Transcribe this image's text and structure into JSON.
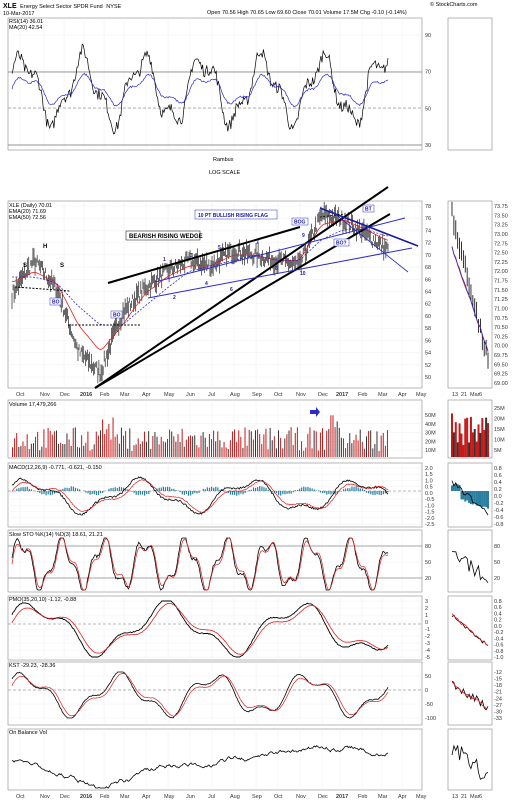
{
  "header": {
    "symbol": "XLE",
    "name": "Energy Select Sector SPDR Fund",
    "exchange": "NYSE",
    "date": "10-Mar-2017",
    "quote": "Open 70.56  High 70.65  Low 69.60  Close 70.01  Volume 17.5M  Chg -0.10 (-0.14%)",
    "watermark": "© StockCharts.com"
  },
  "colors": {
    "price": "#000000",
    "ema20": "#e02020",
    "ema50": "#2a2ad0",
    "volume": "#c81818",
    "macd_hist": "#2a7fa0",
    "line": "#000000",
    "signal": "#e02020",
    "trend": "#000000",
    "flag": "#2a2ad0"
  },
  "texts": {
    "rambus": "Rambus",
    "log_scale": "LOG SCALE",
    "wedge_label": "BEARISH RISING WEDGE",
    "flag_label": "10 PT BULLISH RISING FLAG",
    "bo1": "BO",
    "bo2": "BO",
    "bog": "BOG",
    "bo_flag": "BO?",
    "bt": "BT",
    "h": "H",
    "s1": "S",
    "s2": "S"
  },
  "wave_labels": [
    "1",
    "2",
    "3",
    "4",
    "5",
    "6",
    "7",
    "8",
    "9",
    "10"
  ],
  "panels": {
    "rsi": {
      "label": "RSI(14) 36.01",
      "ma_label": "MA(20) 42.54",
      "ticks": [
        "90",
        "70",
        "50",
        "30"
      ]
    },
    "price": {
      "label": "XLE (Daily) 70.01",
      "ema20_label": "EMA(20) 71.69",
      "ema50_label": "EMA(50) 72.56",
      "ticks": [
        "78",
        "76",
        "74",
        "72",
        "70",
        "68",
        "66",
        "64",
        "62",
        "60",
        "58",
        "56",
        "54",
        "52",
        "50"
      ]
    },
    "volume": {
      "label": "Volume 17,479,266",
      "ticks": [
        "50M",
        "40M",
        "30M",
        "20M",
        "10M"
      ]
    },
    "macd": {
      "label": "MACD(12,26,9) -0.771, -0.621, -0.150",
      "ticks": [
        "2.0",
        "1.5",
        "1.0",
        "0.5",
        "0.0",
        "-0.5",
        "-1.0",
        "-1.5",
        "-2.0",
        "-2.5"
      ]
    },
    "sto": {
      "label": "Slow STO %K(14) %D(3) 18.61, 21.21",
      "ticks": [
        "80",
        "50",
        "20"
      ]
    },
    "pmo": {
      "label": "PMO(35,20,10) -1.12, -0.88",
      "ticks": [
        "3",
        "2",
        "1",
        "0",
        "-1",
        "-2",
        "-3",
        "-4",
        "-5"
      ]
    },
    "kst": {
      "label": "KST -29.23, -28.36",
      "ticks": [
        "50",
        "0",
        "-50",
        "-100"
      ]
    },
    "obv": {
      "label": "On Balance Vol"
    }
  },
  "x_axis": [
    "Oct",
    "Nov",
    "Dec",
    "2016",
    "Feb",
    "Mar",
    "Apr",
    "May",
    "Jun",
    "Jul",
    "Aug",
    "Sep",
    "Oct",
    "Nov",
    "Dec",
    "2017",
    "Feb",
    "Mar",
    "Apr",
    "May"
  ],
  "right_panel": {
    "price_ticks": [
      "73.75",
      "73.50",
      "73.25",
      "73.00",
      "72.75",
      "72.50",
      "72.25",
      "72.00",
      "71.75",
      "71.50",
      "71.25",
      "71.00",
      "70.75",
      "70.50",
      "70.25",
      "70.00",
      "69.75",
      "69.50",
      "69.25",
      "69.00"
    ],
    "vol_ticks": [
      "25M",
      "20M",
      "15M",
      "10M",
      "5M"
    ],
    "macd_ticks": [
      "0.8",
      "0.6",
      "0.4",
      "0.2",
      "0.0",
      "-0.2",
      "-0.4",
      "-0.6",
      "-0.8"
    ],
    "sto_ticks": [
      "80",
      "50",
      "20"
    ],
    "pmo_ticks": [
      "0.8",
      "0.6",
      "0.4",
      "0.2",
      "0.0",
      "-0.2",
      "-0.4",
      "-0.6",
      "-0.8",
      "-1.0"
    ],
    "kst_ticks": [
      "-12",
      "-15",
      "-18",
      "-21",
      "-24",
      "-27",
      "-30",
      "-33"
    ],
    "x_axis": [
      "13",
      "21",
      "Mar",
      "6"
    ]
  },
  "chart_data": {
    "type": "line",
    "title": "",
    "xlabel": "",
    "ylabel": "",
    "x": [
      "Oct-15",
      "Nov-15",
      "Dec-15",
      "Jan-16",
      "Feb-16",
      "Mar-16",
      "Apr-16",
      "May-16",
      "Jun-16",
      "Jul-16",
      "Aug-16",
      "Sep-16",
      "Oct-16",
      "Nov-16",
      "Dec-16",
      "Jan-17",
      "Feb-17",
      "Mar-17"
    ],
    "ylim": [
      48,
      80
    ],
    "log_scale": true,
    "grid": true,
    "series": [
      {
        "name": "XLE (Daily)",
        "values": [
          62,
          68,
          63,
          53,
          50,
          59,
          63,
          66,
          68,
          67,
          70,
          69,
          68,
          67,
          77,
          76,
          73,
          70
        ]
      },
      {
        "name": "EMA(20)",
        "values": [
          64,
          66,
          64,
          57,
          53,
          57,
          62,
          65,
          67,
          67,
          69,
          69,
          68,
          68,
          75,
          76,
          74,
          71.7
        ]
      },
      {
        "name": "EMA(50)",
        "values": [
          65,
          65,
          64,
          60,
          57,
          57,
          60,
          63,
          66,
          67,
          68,
          69,
          68,
          68,
          72,
          74,
          74,
          72.6
        ]
      }
    ]
  }
}
